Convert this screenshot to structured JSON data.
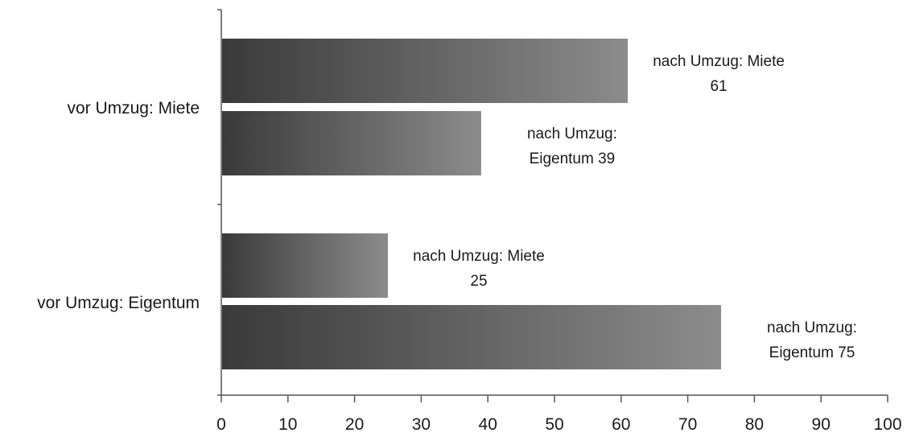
{
  "chart_data": {
    "type": "bar",
    "orientation": "horizontal",
    "categories": [
      "vor Umzug: Miete",
      "vor Umzug: Eigentum"
    ],
    "bars": [
      {
        "category": "vor Umzug: Miete",
        "value": 61,
        "label_lines": [
          "nach Umzug: Miete",
          "61"
        ]
      },
      {
        "category": "vor Umzug: Miete",
        "value": 39,
        "label_lines": [
          "nach Umzug:",
          "Eigentum 39"
        ]
      },
      {
        "category": "vor Umzug: Eigentum",
        "value": 25,
        "label_lines": [
          "nach Umzug: Miete",
          "25"
        ]
      },
      {
        "category": "vor Umzug: Eigentum",
        "value": 75,
        "label_lines": [
          "nach Umzug:",
          "Eigentum 75"
        ]
      }
    ],
    "xlim": [
      0,
      100
    ],
    "x_ticks": [
      "0",
      "10",
      "20",
      "30",
      "40",
      "50",
      "60",
      "70",
      "80",
      "90",
      "100"
    ],
    "grid": false,
    "bar_fill": {
      "start": "#3a3a3a",
      "end": "#8c8c8c"
    },
    "axis_color": "#555555"
  }
}
